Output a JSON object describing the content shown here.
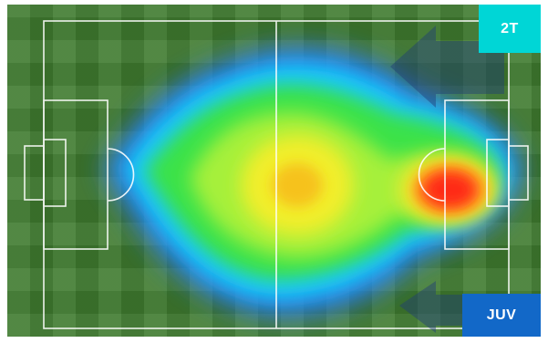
{
  "period_badge": {
    "label": "2T",
    "color": "#00d6d6"
  },
  "team_badge": {
    "label": "JUV",
    "color": "#1268c8"
  },
  "heatmap": {
    "attack_direction": "right",
    "color_scale": [
      "#1e5cff",
      "#19c6ff",
      "#35e24a",
      "#e9ee2e",
      "#ff9a1a",
      "#ff1a1a"
    ]
  }
}
